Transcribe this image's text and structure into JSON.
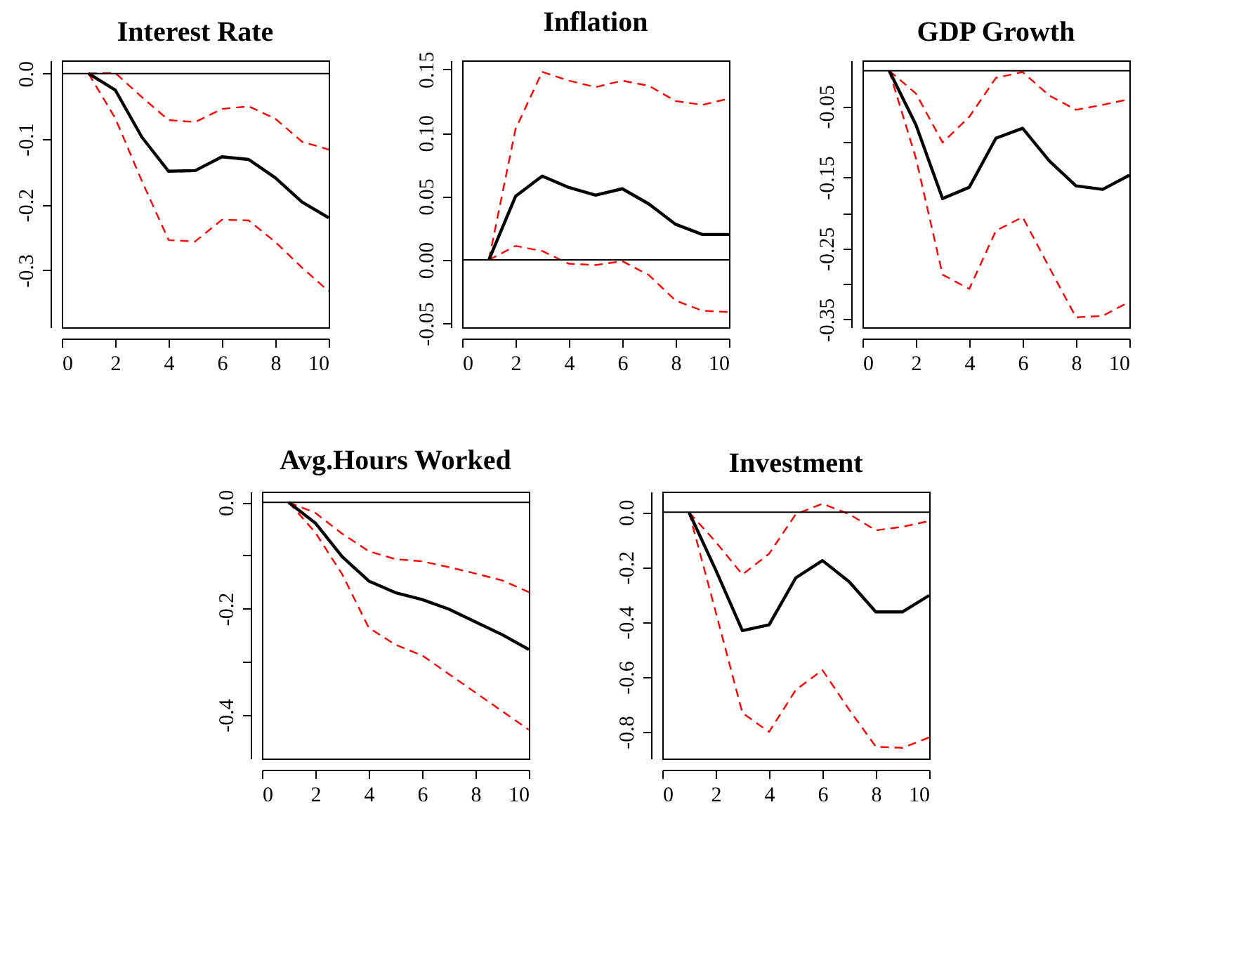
{
  "chart_data": [
    {
      "type": "line",
      "title": "Interest Rate",
      "x": [
        1,
        2,
        3,
        4,
        5,
        6,
        7,
        8,
        9,
        10
      ],
      "xlim": [
        0,
        10
      ],
      "xticks": [
        0,
        2,
        4,
        6,
        8,
        10
      ],
      "ylim": [
        -0.387,
        0.02
      ],
      "yticks": [
        {
          "value": 0,
          "label": "0.0"
        },
        -0.1,
        -0.2,
        -0.3
      ],
      "grid": false,
      "marker": "none",
      "ref_lines": [
        {
          "axis": "y",
          "value": 0,
          "color": "#000000",
          "line_style": "solid"
        }
      ],
      "series": [
        {
          "color": "#ff0000",
          "line_style": "dashed",
          "values": [
            0,
            0.001,
            -0.036,
            -0.071,
            -0.074,
            -0.054,
            -0.05,
            -0.069,
            -0.104,
            -0.116
          ]
        },
        {
          "color": "#ff0000",
          "line_style": "dashed",
          "values": [
            0,
            -0.068,
            -0.164,
            -0.254,
            -0.256,
            -0.223,
            -0.224,
            -0.257,
            -0.296,
            -0.332
          ]
        },
        {
          "color": "#000000",
          "line_style": "solid",
          "values": [
            0,
            -0.025,
            -0.097,
            -0.149,
            -0.148,
            -0.127,
            -0.131,
            -0.159,
            -0.196,
            -0.22
          ]
        }
      ]
    },
    {
      "type": "line",
      "title": "Inflation",
      "x": [
        1,
        2,
        3,
        4,
        5,
        6,
        7,
        8,
        9,
        10
      ],
      "xlim": [
        0,
        10
      ],
      "xticks": [
        0,
        2,
        4,
        6,
        8,
        10
      ],
      "ylim": [
        -0.053,
        0.157
      ],
      "yticks": [
        {
          "value": -0.05,
          "label": "-0.05"
        },
        {
          "value": 0,
          "label": "0.00"
        },
        {
          "value": 0.05,
          "label": "0.05"
        },
        {
          "value": 0.1,
          "label": "0.10"
        },
        {
          "value": 0.15,
          "label": "0.15"
        }
      ],
      "grid": false,
      "marker": "none",
      "ref_lines": [
        {
          "axis": "y",
          "value": 0,
          "color": "#000000",
          "line_style": "solid"
        }
      ],
      "series": [
        {
          "color": "#ff0000",
          "line_style": "dashed",
          "values": [
            0,
            0.103,
            0.148,
            0.141,
            0.136,
            0.141,
            0.137,
            0.125,
            0.122,
            0.127
          ]
        },
        {
          "color": "#ff0000",
          "line_style": "dashed",
          "values": [
            0,
            0.011,
            0.007,
            -0.003,
            -0.004,
            -0.001,
            -0.012,
            -0.032,
            -0.04,
            -0.041
          ]
        },
        {
          "color": "#000000",
          "line_style": "solid",
          "values": [
            0,
            0.05,
            0.066,
            0.057,
            0.051,
            0.056,
            0.044,
            0.028,
            0.02,
            0.02
          ]
        }
      ]
    },
    {
      "type": "line",
      "title": "GDP Growth",
      "x": [
        1,
        2,
        3,
        4,
        5,
        6,
        7,
        8,
        9,
        10
      ],
      "xlim": [
        0,
        10
      ],
      "xticks": [
        0,
        2,
        4,
        6,
        8,
        10
      ],
      "ylim": [
        -0.361,
        0.0145
      ],
      "yticks": [
        -0.05,
        {
          "value": -0.1,
          "label": null
        },
        -0.15,
        {
          "value": -0.2,
          "label": null
        },
        -0.25,
        {
          "value": -0.3,
          "label": null
        },
        -0.35
      ],
      "grid": false,
      "marker": "none",
      "ref_lines": [
        {
          "axis": "y",
          "value": 0,
          "color": "#000000",
          "line_style": "solid"
        }
      ],
      "series": [
        {
          "color": "#ff0000",
          "line_style": "dashed",
          "values": [
            0,
            -0.032,
            -0.101,
            -0.065,
            -0.01,
            -0.002,
            -0.035,
            -0.055,
            -0.048,
            -0.04
          ]
        },
        {
          "color": "#ff0000",
          "line_style": "dashed",
          "values": [
            0,
            -0.123,
            -0.287,
            -0.307,
            -0.225,
            -0.206,
            -0.277,
            -0.347,
            -0.345,
            -0.325
          ]
        },
        {
          "color": "#000000",
          "line_style": "solid",
          "values": [
            0,
            -0.076,
            -0.18,
            -0.164,
            -0.095,
            -0.081,
            -0.127,
            -0.162,
            -0.167,
            -0.147
          ]
        }
      ]
    },
    {
      "type": "line",
      "title": "Avg.Hours Worked",
      "x": [
        1,
        2,
        3,
        4,
        5,
        6,
        7,
        8,
        9,
        10
      ],
      "xlim": [
        0,
        10
      ],
      "xticks": [
        0,
        2,
        4,
        6,
        8,
        10
      ],
      "ylim": [
        -0.482,
        0.02
      ],
      "yticks": [
        {
          "value": 0,
          "label": "0.0"
        },
        {
          "value": -0.1,
          "label": null
        },
        -0.2,
        {
          "value": -0.3,
          "label": null
        },
        -0.4
      ],
      "grid": false,
      "marker": "none",
      "ref_lines": [
        {
          "axis": "y",
          "value": 0,
          "color": "#000000",
          "line_style": "solid"
        }
      ],
      "series": [
        {
          "color": "#ff0000",
          "line_style": "dashed",
          "values": [
            0,
            -0.02,
            -0.059,
            -0.092,
            -0.107,
            -0.111,
            -0.122,
            -0.134,
            -0.147,
            -0.169
          ]
        },
        {
          "color": "#ff0000",
          "line_style": "dashed",
          "values": [
            0,
            -0.057,
            -0.135,
            -0.236,
            -0.268,
            -0.288,
            -0.323,
            -0.358,
            -0.393,
            -0.428
          ]
        },
        {
          "color": "#000000",
          "line_style": "solid",
          "values": [
            0,
            -0.039,
            -0.102,
            -0.148,
            -0.17,
            -0.183,
            -0.201,
            -0.225,
            -0.249,
            -0.277
          ]
        }
      ]
    },
    {
      "type": "line",
      "title": "Investment",
      "x": [
        1,
        2,
        3,
        4,
        5,
        6,
        7,
        8,
        9,
        10
      ],
      "xlim": [
        0,
        10
      ],
      "xticks": [
        0,
        2,
        4,
        6,
        8,
        10
      ],
      "ylim": [
        -0.897,
        0.075
      ],
      "yticks": [
        {
          "value": 0,
          "label": "0.0"
        },
        -0.2,
        -0.4,
        -0.6,
        -0.8
      ],
      "grid": false,
      "marker": "none",
      "ref_lines": [
        {
          "axis": "y",
          "value": 0,
          "color": "#000000",
          "line_style": "solid"
        }
      ],
      "series": [
        {
          "color": "#ff0000",
          "line_style": "dashed",
          "values": [
            0,
            -0.108,
            -0.227,
            -0.151,
            -0.007,
            0.031,
            -0.007,
            -0.066,
            -0.053,
            -0.032
          ]
        },
        {
          "color": "#ff0000",
          "line_style": "dashed",
          "values": [
            0,
            -0.363,
            -0.731,
            -0.8,
            -0.647,
            -0.575,
            -0.719,
            -0.854,
            -0.858,
            -0.82
          ]
        },
        {
          "color": "#000000",
          "line_style": "solid",
          "values": [
            0,
            -0.21,
            -0.431,
            -0.41,
            -0.239,
            -0.176,
            -0.253,
            -0.363,
            -0.363,
            -0.303
          ]
        }
      ]
    }
  ]
}
